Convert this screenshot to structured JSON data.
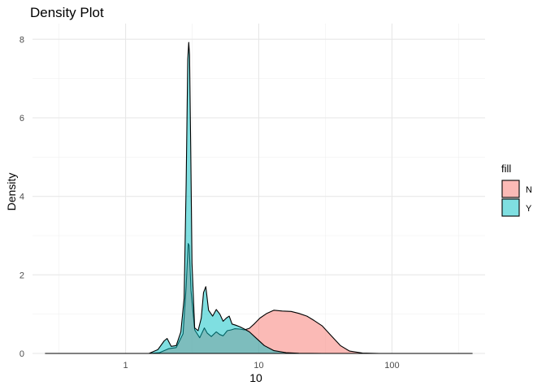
{
  "chart_data": {
    "type": "area",
    "title": "Density Plot",
    "xlabel": "10",
    "ylabel": "Density",
    "x_scale": "log10",
    "xlim": [
      0.2,
      500
    ],
    "ylim": [
      0,
      8.4
    ],
    "x_ticks": [
      1,
      10,
      100
    ],
    "x_tick_labels": [
      "1",
      "10",
      "100"
    ],
    "y_ticks": [
      0,
      2,
      4,
      6,
      8
    ],
    "y_tick_labels": [
      "0",
      "2",
      "4",
      "6",
      "8"
    ],
    "grid": true,
    "legend": {
      "title": "fill",
      "placement": "right"
    },
    "series": [
      {
        "name": "N",
        "color": "#F8766D",
        "x": [
          0.25,
          1.5,
          1.8,
          2.1,
          2.4,
          2.7,
          2.85,
          2.95,
          3.0,
          3.1,
          3.3,
          3.6,
          3.9,
          4.1,
          4.4,
          4.8,
          5.1,
          5.4,
          5.8,
          6.2,
          6.6,
          7.2,
          7.8,
          8.5,
          9.3,
          10.2,
          11.5,
          13.0,
          15.0,
          17.5,
          20.0,
          23.0,
          26.0,
          30.0,
          35.0,
          41.0,
          48.0,
          60.0,
          80.0,
          150.0,
          400.0
        ],
        "values": [
          0,
          0,
          0.02,
          0.12,
          0.15,
          0.5,
          1.7,
          2.8,
          2.75,
          1.6,
          0.6,
          0.4,
          0.65,
          0.52,
          0.43,
          0.55,
          0.48,
          0.45,
          0.58,
          0.6,
          0.63,
          0.62,
          0.6,
          0.64,
          0.76,
          0.9,
          1.02,
          1.1,
          1.08,
          1.07,
          1.02,
          0.95,
          0.84,
          0.7,
          0.45,
          0.2,
          0.06,
          0.01,
          0,
          0,
          0
        ]
      },
      {
        "name": "Y",
        "color": "#00BFC4",
        "x": [
          0.25,
          1.5,
          1.75,
          1.95,
          2.05,
          2.2,
          2.4,
          2.6,
          2.75,
          2.85,
          2.93,
          2.98,
          3.02,
          3.08,
          3.15,
          3.3,
          3.5,
          3.7,
          3.85,
          4.0,
          4.2,
          4.5,
          4.8,
          5.1,
          5.4,
          5.7,
          6.0,
          6.3,
          6.7,
          7.2,
          7.8,
          8.5,
          9.5,
          11.0,
          13.0,
          16.0,
          20.0,
          30.0,
          400.0
        ],
        "values": [
          0,
          0,
          0.1,
          0.32,
          0.38,
          0.18,
          0.2,
          0.55,
          1.4,
          4.3,
          7.5,
          7.92,
          7.6,
          5.3,
          2.3,
          0.65,
          0.58,
          0.9,
          1.55,
          1.7,
          1.1,
          0.95,
          1.12,
          1.0,
          0.82,
          0.9,
          0.95,
          0.75,
          0.72,
          0.68,
          0.62,
          0.55,
          0.4,
          0.2,
          0.07,
          0.02,
          0.005,
          0,
          0
        ]
      }
    ]
  }
}
